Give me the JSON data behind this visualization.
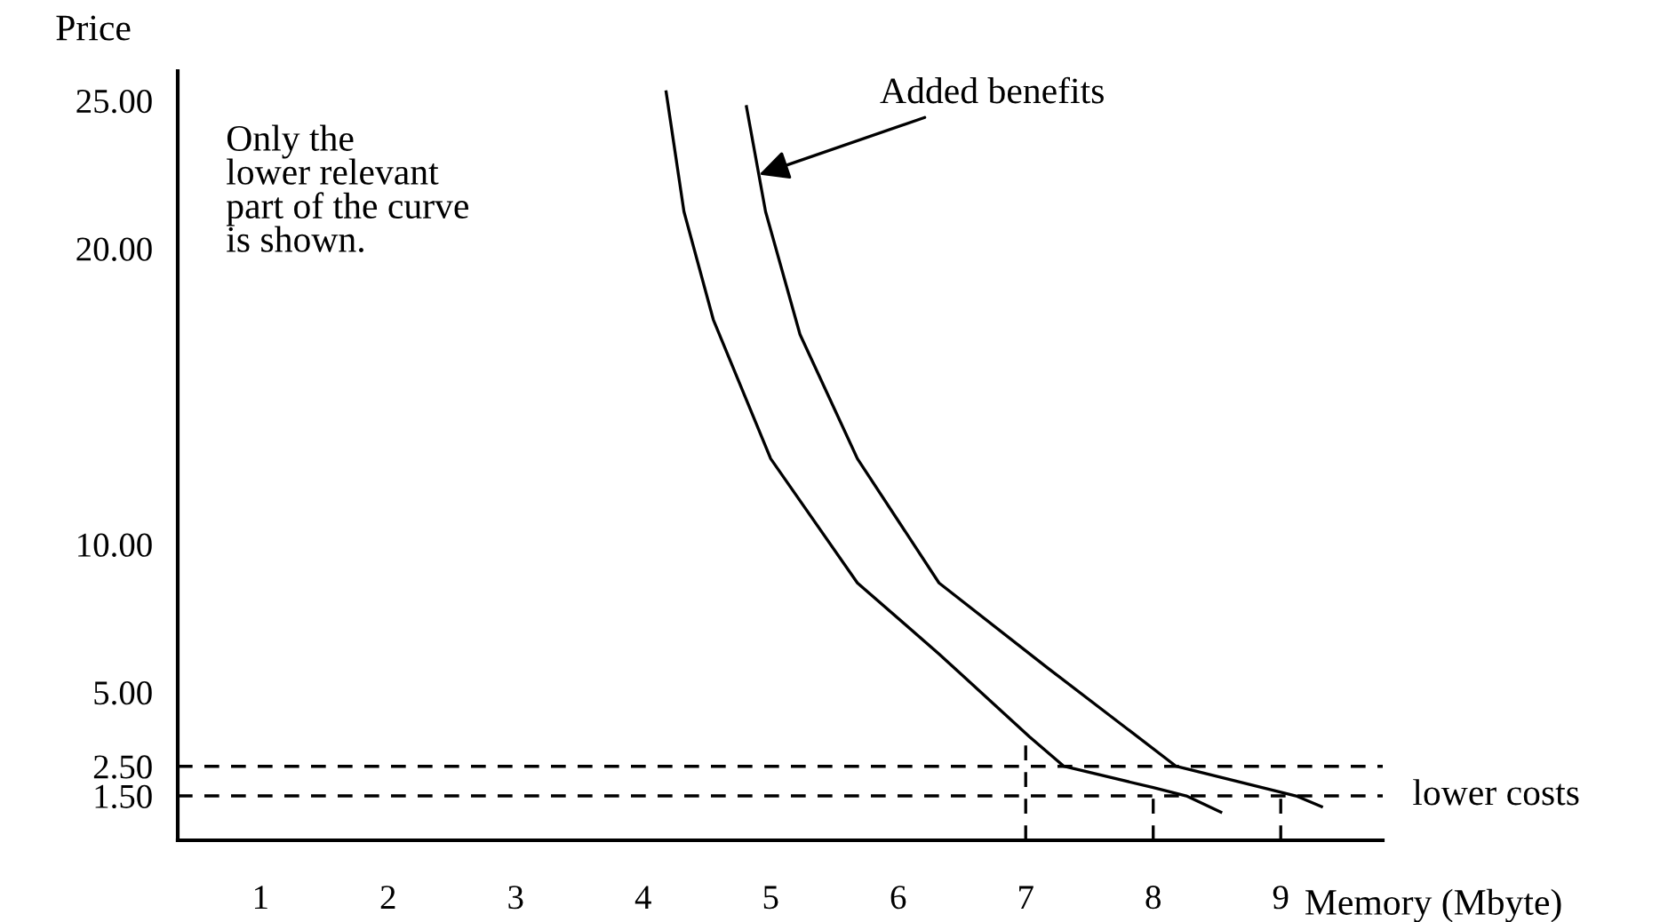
{
  "chart_data": {
    "type": "line",
    "ylabel": "Price",
    "xlabel": "Memory (Mbyte)",
    "xlim": [
      0.35,
      9.8
    ],
    "xticks": [
      1,
      2,
      3,
      4,
      5,
      6,
      7,
      8,
      9
    ],
    "ylim": [
      0,
      26
    ],
    "yticks": [
      {
        "value": 1.5,
        "label": "1.50"
      },
      {
        "value": 2.5,
        "label": "2.50"
      },
      {
        "value": 5,
        "label": "5.00"
      },
      {
        "value": 10,
        "label": "10.00"
      },
      {
        "value": 20,
        "label": "20.00"
      },
      {
        "value": 25,
        "label": "25.00"
      }
    ],
    "grid": false,
    "marker": "none",
    "series": [
      {
        "color": "#000000",
        "line_style": "solid",
        "x": [
          4.18,
          4.32,
          4.55,
          5.0,
          5.68,
          6.32,
          7.03,
          7.3,
          8.0,
          8.26,
          8.53
        ],
        "values": [
          25.3,
          21.25,
          17.6,
          12.9,
          8.7,
          6.3,
          3.5,
          2.5,
          1.78,
          1.5,
          0.95
        ]
      },
      {
        "color": "#000000",
        "line_style": "solid",
        "x": [
          4.81,
          4.96,
          5.23,
          5.68,
          6.32,
          7.18,
          8.18,
          9.12,
          9.32
        ],
        "values": [
          24.8,
          21.25,
          17.1,
          12.9,
          8.7,
          5.8,
          2.5,
          1.5,
          1.14
        ]
      },
      {
        "color": "#000000",
        "line_style": "dashed",
        "x": [
          7,
          7
        ],
        "values": [
          0,
          3.5
        ]
      },
      {
        "color": "#000000",
        "line_style": "dashed",
        "x": [
          8,
          8
        ],
        "values": [
          0,
          1.78
        ]
      },
      {
        "color": "#000000",
        "line_style": "dashed",
        "x": [
          9,
          9
        ],
        "values": [
          0,
          1.5
        ]
      }
    ],
    "ref_lines": [
      {
        "axis": "y",
        "value": 2.5,
        "label": null,
        "color": "#000000",
        "line_style": "dashed"
      },
      {
        "axis": "y",
        "value": 1.5,
        "label": "lower costs",
        "color": "#000000",
        "line_style": "dashed"
      }
    ],
    "annotations": [
      {
        "text": "Added benefits",
        "x": 4.91,
        "y": 22.5
      },
      "Only the\nlower relevant\npart of the curve\nis shown."
    ]
  }
}
